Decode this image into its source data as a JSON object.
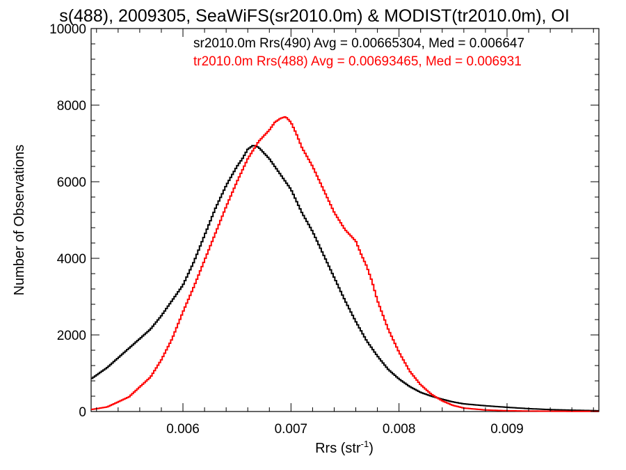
{
  "chart_data": {
    "type": "line",
    "title": "s(488), 2009305, SeaWiFS(sr2010.0m) & MODIST(tr2010.0m), OI",
    "xlabel": "Rrs (str",
    "xlabel_superscript": "-1",
    "xlabel_suffix": ")",
    "ylabel": "Number of Observations",
    "xlim": [
      0.00515,
      0.00985
    ],
    "ylim": [
      0,
      10000
    ],
    "x_ticks": [
      0.006,
      0.007,
      0.008,
      0.009
    ],
    "x_tick_labels": [
      "0.006",
      "0.007",
      "0.008",
      "0.009"
    ],
    "y_ticks": [
      0,
      2000,
      4000,
      6000,
      8000,
      10000
    ],
    "y_tick_labels": [
      "0",
      "2000",
      "4000",
      "6000",
      "8000",
      "10000"
    ],
    "annotations": [
      {
        "text": "sr2010.0m Rrs(490) Avg = 0.00665304, Med = 0.006647",
        "color": "#000000"
      },
      {
        "text": "tr2010.0m Rrs(488) Avg = 0.00693465, Med = 0.006931",
        "color": "#ff0000"
      }
    ],
    "series": [
      {
        "name": "sr2010.0m Rrs(490)",
        "color": "#000000",
        "x": [
          0.00515,
          0.0053,
          0.0055,
          0.0057,
          0.0058,
          0.0059,
          0.006,
          0.0061,
          0.0062,
          0.0063,
          0.0064,
          0.0065,
          0.00655,
          0.0066,
          0.00665,
          0.0067,
          0.00675,
          0.0068,
          0.0069,
          0.007,
          0.0071,
          0.0072,
          0.0073,
          0.0074,
          0.0075,
          0.0076,
          0.0077,
          0.0078,
          0.0079,
          0.008,
          0.0081,
          0.0082,
          0.0083,
          0.0084,
          0.0085,
          0.0086,
          0.0088,
          0.009,
          0.0092,
          0.0094,
          0.0096,
          0.00985
        ],
        "y": [
          850,
          1150,
          1650,
          2150,
          2500,
          2900,
          3300,
          3900,
          4600,
          5300,
          5900,
          6400,
          6600,
          6850,
          6950,
          6900,
          6750,
          6600,
          6200,
          5800,
          5200,
          4700,
          4100,
          3500,
          2900,
          2350,
          1850,
          1450,
          1100,
          850,
          650,
          500,
          400,
          320,
          250,
          200,
          150,
          110,
          75,
          50,
          35,
          20
        ]
      },
      {
        "name": "tr2010.0m Rrs(488)",
        "color": "#ff0000",
        "x": [
          0.00515,
          0.0053,
          0.0055,
          0.0057,
          0.0058,
          0.0059,
          0.006,
          0.0061,
          0.0062,
          0.0063,
          0.0064,
          0.0065,
          0.0066,
          0.0067,
          0.0068,
          0.00685,
          0.0069,
          0.00695,
          0.007,
          0.00705,
          0.0071,
          0.0072,
          0.0073,
          0.0074,
          0.0075,
          0.0076,
          0.00765,
          0.0077,
          0.00775,
          0.0078,
          0.0079,
          0.008,
          0.0081,
          0.0082,
          0.0083,
          0.0084,
          0.0085,
          0.0086,
          0.0088,
          0.009,
          0.0092,
          0.0094,
          0.0096,
          0.00985
        ],
        "y": [
          50,
          120,
          380,
          900,
          1350,
          1900,
          2600,
          3250,
          3950,
          4650,
          5350,
          6000,
          6600,
          7050,
          7350,
          7550,
          7650,
          7700,
          7550,
          7250,
          6900,
          6400,
          5800,
          5200,
          4750,
          4450,
          4100,
          3800,
          3400,
          2900,
          2150,
          1550,
          1050,
          700,
          450,
          280,
          160,
          90,
          40,
          20,
          12,
          8,
          5,
          3
        ]
      }
    ],
    "grid": false,
    "legend": "none"
  }
}
